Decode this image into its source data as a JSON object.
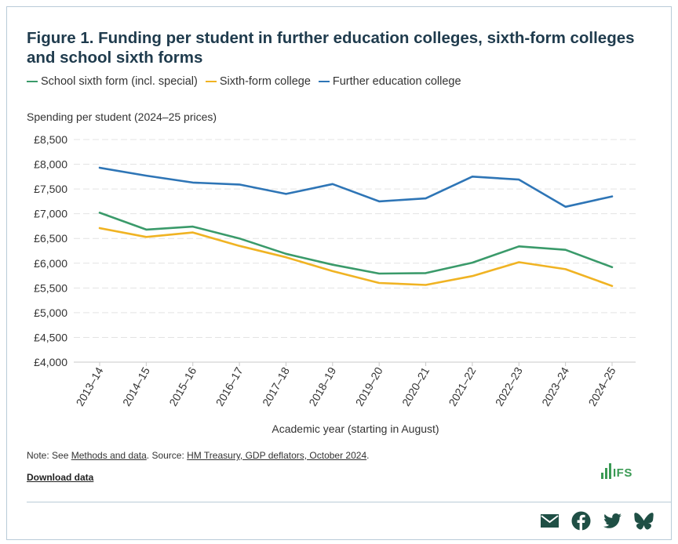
{
  "figure": {
    "title": "Figure 1. Funding per student in further education colleges, sixth-form colleges and school sixth forms"
  },
  "legend": [
    {
      "label": "School sixth form (incl. special)",
      "color": "#3a9a6a"
    },
    {
      "label": "Sixth-form college",
      "color": "#f0b323"
    },
    {
      "label": "Further education college",
      "color": "#2e75b6"
    }
  ],
  "chart_data": {
    "type": "line",
    "xlabel": "Academic year (starting in August)",
    "ylabel": "Spending per student (2024–25 prices)",
    "ylim": [
      4000,
      8500
    ],
    "yticks": [
      "£4,000",
      "£4,500",
      "£5,000",
      "£5,500",
      "£6,000",
      "£6,500",
      "£7,000",
      "£7,500",
      "£8,000",
      "£8,500"
    ],
    "ytick_values": [
      4000,
      4500,
      5000,
      5500,
      6000,
      6500,
      7000,
      7500,
      8000,
      8500
    ],
    "grid": true,
    "legend_position": "top-left",
    "categories": [
      "2013–14",
      "2014–15",
      "2015–16",
      "2016–17",
      "2017–18",
      "2018–19",
      "2019–20",
      "2020–21",
      "2021–22",
      "2022–23",
      "2023–24",
      "2024–25"
    ],
    "series": [
      {
        "name": "School sixth form (incl. special)",
        "color": "#3a9a6a",
        "values": [
          7020,
          6680,
          6740,
          6500,
          6190,
          5970,
          5790,
          5800,
          6010,
          6340,
          6270,
          5920
        ]
      },
      {
        "name": "Sixth-form college",
        "color": "#f0b323",
        "values": [
          6710,
          6530,
          6620,
          6350,
          6120,
          5840,
          5600,
          5560,
          5740,
          6020,
          5880,
          5540
        ]
      },
      {
        "name": "Further education college",
        "color": "#2e75b6",
        "values": [
          7930,
          7770,
          7630,
          7590,
          7400,
          7600,
          7250,
          7310,
          7750,
          7690,
          7140,
          7350
        ]
      }
    ]
  },
  "notes": {
    "prefix": "Note: See ",
    "methods_link": "Methods and data",
    "middle": ". Source: ",
    "source_link": "HM Treasury, GDP deflators, October 2024",
    "suffix": "."
  },
  "download_label": "Download data",
  "logo_text": "IFS",
  "share_icons": [
    "email-icon",
    "facebook-icon",
    "twitter-icon",
    "bluesky-icon"
  ]
}
